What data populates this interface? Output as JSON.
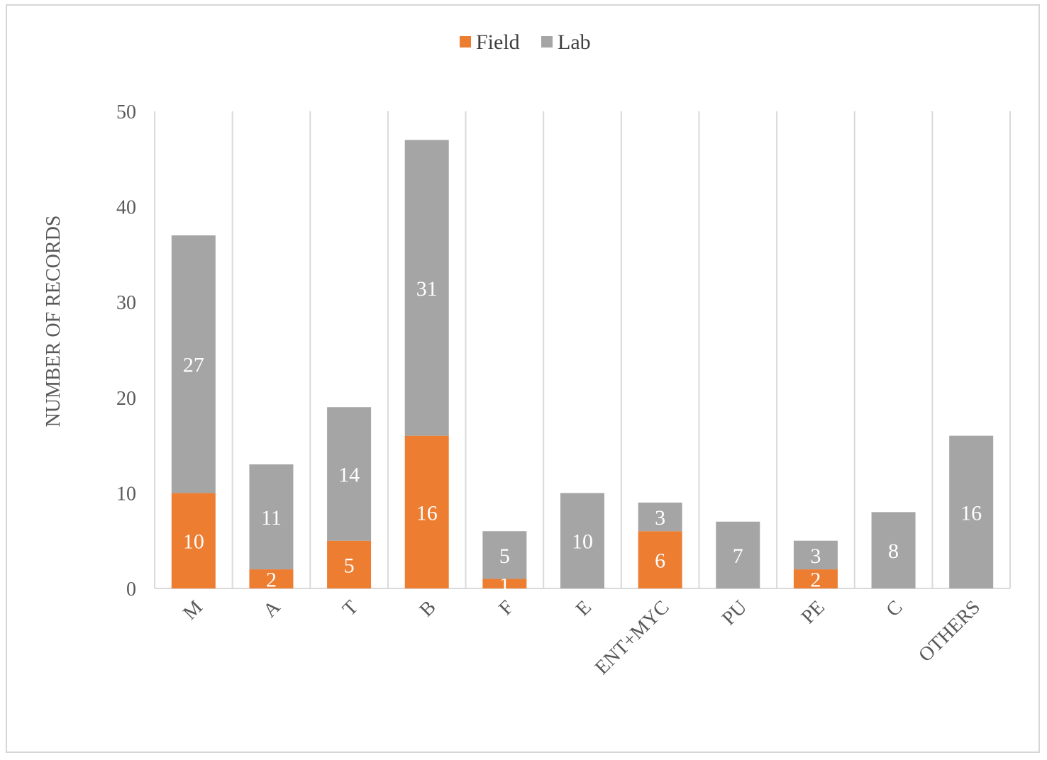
{
  "chart_data": {
    "type": "bar",
    "stacked": true,
    "categories": [
      "M",
      "A",
      "T",
      "B",
      "F",
      "E",
      "ENT+MYC",
      "PU",
      "PE",
      "C",
      "OTHERS"
    ],
    "series": [
      {
        "name": "Field",
        "color": "#ED7D31",
        "values": [
          10,
          2,
          5,
          16,
          1,
          0,
          6,
          0,
          2,
          0,
          0
        ]
      },
      {
        "name": "Lab",
        "color": "#A5A5A5",
        "values": [
          27,
          11,
          14,
          31,
          5,
          10,
          3,
          7,
          3,
          8,
          16
        ]
      }
    ],
    "title": "",
    "xlabel": "",
    "ylabel": "NUMBER OF RECORDS",
    "ylim": [
      0,
      50
    ],
    "yticks": [
      0,
      10,
      20,
      30,
      40,
      50
    ],
    "legend_position": "top",
    "grid": "vertical category separators"
  }
}
